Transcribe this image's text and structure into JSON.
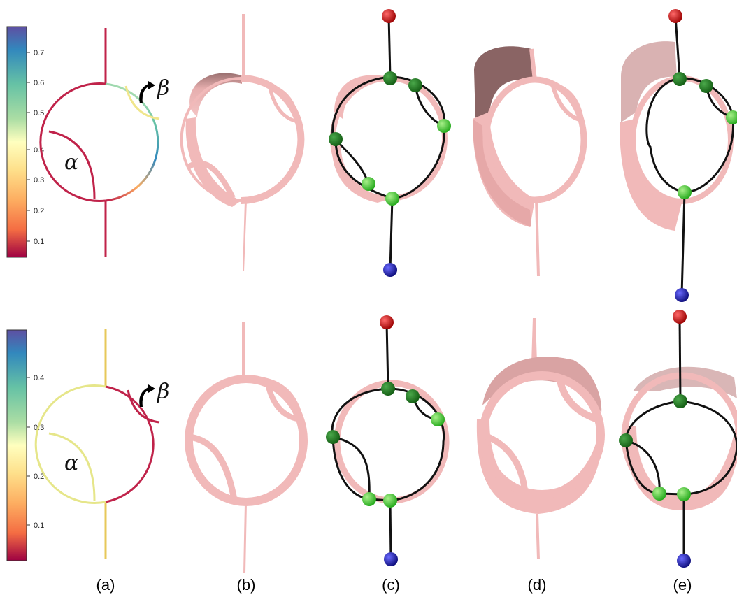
{
  "figure": {
    "panel_labels": [
      "(a)",
      "(b)",
      "(c)",
      "(d)",
      "(e)"
    ],
    "annotations": {
      "alpha": "α",
      "beta": "β"
    },
    "colorbar_top": {
      "ticks": [
        "0.7",
        "0.6",
        "0.5",
        "0.4",
        "0.3",
        "0.2",
        "0.1"
      ]
    },
    "colorbar_bottom": {
      "ticks": [
        "0.4",
        "0.3",
        "0.2",
        "0.1"
      ]
    },
    "colors": {
      "surface": "#f1b9b9",
      "surface_dark": "#8a6464",
      "graph_edge": "#111111",
      "node_green_dark": "#1e7a1e",
      "node_green_light": "#3ecf2e",
      "node_source": "#cc1111",
      "node_sink": "#1a1aa8"
    }
  }
}
